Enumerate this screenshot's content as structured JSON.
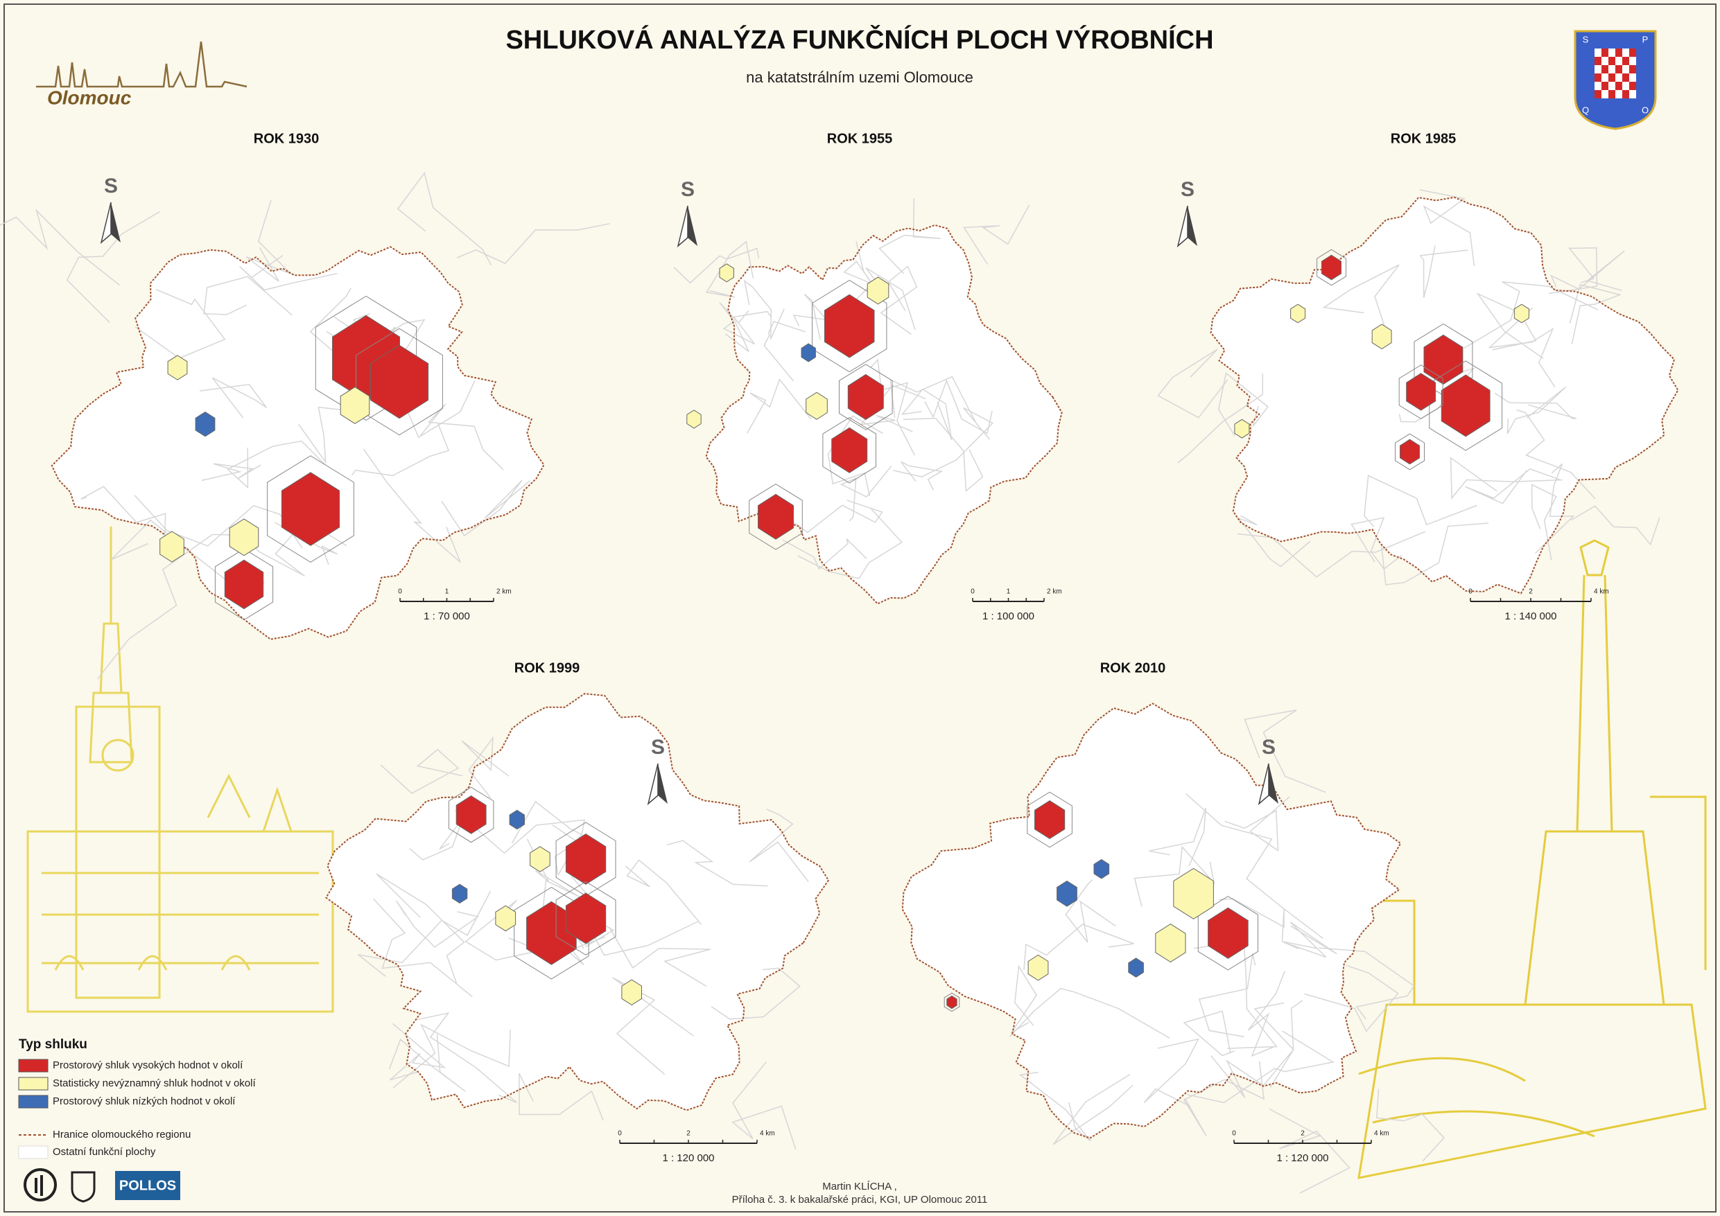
{
  "header": {
    "title": "SHLUKOVÁ ANALÝZA FUNKČNÍCH PLOCH VÝROBNÍCH",
    "subtitle": "na katatstrálním uzemi Olomouce",
    "city_logo": "Olomouc",
    "coat_of_arms": [
      "S",
      "P",
      "Q",
      "O"
    ]
  },
  "maps": [
    {
      "title": "ROK 1930",
      "north": "S",
      "scale_ticks": [
        "0",
        "1",
        "2 km"
      ],
      "scale": "1 : 70 000"
    },
    {
      "title": "ROK 1955",
      "north": "S",
      "scale_ticks": [
        "0",
        "1",
        "2 km"
      ],
      "scale": "1 : 100 000"
    },
    {
      "title": "ROK 1985",
      "north": "S",
      "scale_ticks": [
        "0",
        "2",
        "4 km"
      ],
      "scale": "1 : 140 000"
    },
    {
      "title": "ROK 1999",
      "north": "S",
      "scale_ticks": [
        "0",
        "2",
        "4 km"
      ],
      "scale": "1 : 120 000"
    },
    {
      "title": "ROK 2010",
      "north": "S",
      "scale_ticks": [
        "0",
        "2",
        "4 km"
      ],
      "scale": "1 : 120 000"
    }
  ],
  "legend": {
    "title": "Typ shluku",
    "items": [
      "Prostorový shluk vysokých hodnot v okolí",
      "Statisticky nevýznamný shluk hodnot v okolí",
      "Prostorový shluk nízkých hodnot v okolí"
    ],
    "boundary": "Hranice olomouckého regionu",
    "other": "Ostatní funkční plochy"
  },
  "logos": [
    "POLLOS"
  ],
  "footer": {
    "author": "Martin KLÍCHA ,",
    "note": "Příloha č. 3. k bakalařské práci, KGI, UP Olomouc 2011"
  }
}
